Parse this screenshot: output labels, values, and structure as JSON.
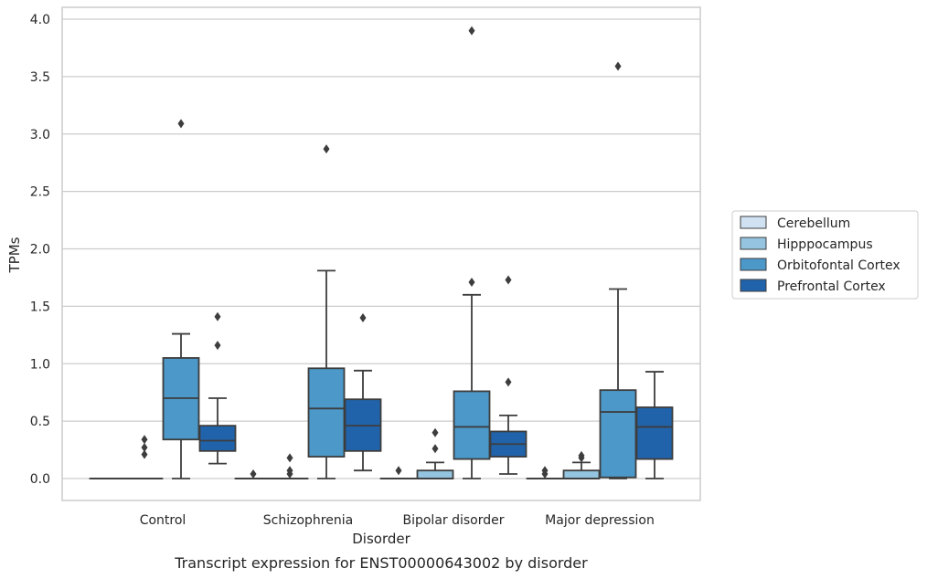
{
  "chart_data": {
    "type": "box",
    "title": "Transcript expression for ENST00000643002 by disorder",
    "xlabel": "Disorder",
    "ylabel": "TPMs",
    "ylim": [
      -0.18,
      4.1
    ],
    "yticks": [
      0.0,
      0.5,
      1.0,
      1.5,
      2.0,
      2.5,
      3.0,
      3.5,
      4.0
    ],
    "ytick_labels": [
      "0.0",
      "0.5",
      "1.0",
      "1.5",
      "2.0",
      "2.5",
      "3.0",
      "3.5",
      "4.0"
    ],
    "grid": "horizontal",
    "legend_position": "right",
    "categories": [
      "Control",
      "Schizophrenia",
      "Bipolar disorder",
      "Major depression"
    ],
    "series": [
      {
        "name": "Cerebellum",
        "color": "#d0e1f2",
        "boxes": [
          {
            "q1": 0,
            "median": 0,
            "q3": 0,
            "whisker_low": 0,
            "whisker_high": 0,
            "outliers": []
          },
          {
            "q1": 0,
            "median": 0,
            "q3": 0,
            "whisker_low": 0,
            "whisker_high": 0,
            "outliers": [
              0.04
            ]
          },
          {
            "q1": 0,
            "median": 0,
            "q3": 0,
            "whisker_low": 0,
            "whisker_high": 0,
            "outliers": [
              0.07
            ]
          },
          {
            "q1": 0,
            "median": 0,
            "q3": 0,
            "whisker_low": 0,
            "whisker_high": 0,
            "outliers": [
              0.04,
              0.07
            ]
          }
        ]
      },
      {
        "name": "Hipppocampus",
        "color": "#94c4df",
        "boxes": [
          {
            "q1": 0,
            "median": 0,
            "q3": 0,
            "whisker_low": 0,
            "whisker_high": 0,
            "outliers": [
              0.21,
              0.27,
              0.34
            ]
          },
          {
            "q1": 0,
            "median": 0,
            "q3": 0,
            "whisker_low": 0,
            "whisker_high": 0,
            "outliers": [
              0.04,
              0.07,
              0.18
            ]
          },
          {
            "q1": 0,
            "median": 0,
            "q3": 0.07,
            "whisker_low": 0,
            "whisker_high": 0.14,
            "outliers": [
              0.26,
              0.4
            ]
          },
          {
            "q1": 0,
            "median": 0,
            "q3": 0.07,
            "whisker_low": 0,
            "whisker_high": 0.14,
            "outliers": [
              0.18,
              0.2
            ]
          }
        ]
      },
      {
        "name": "Orbitofontal Cortex",
        "color": "#4b98c9",
        "boxes": [
          {
            "q1": 0.34,
            "median": 0.7,
            "q3": 1.05,
            "whisker_low": 0,
            "whisker_high": 1.26,
            "outliers": [
              3.09
            ]
          },
          {
            "q1": 0.19,
            "median": 0.61,
            "q3": 0.96,
            "whisker_low": 0,
            "whisker_high": 1.81,
            "outliers": [
              2.87
            ]
          },
          {
            "q1": 0.17,
            "median": 0.45,
            "q3": 0.76,
            "whisker_low": 0,
            "whisker_high": 1.6,
            "outliers": [
              1.71,
              3.9
            ]
          },
          {
            "q1": 0.01,
            "median": 0.58,
            "q3": 0.77,
            "whisker_low": 0,
            "whisker_high": 1.65,
            "outliers": [
              3.59
            ]
          }
        ]
      },
      {
        "name": "Prefrontal Cortex",
        "color": "#2163aa",
        "boxes": [
          {
            "q1": 0.24,
            "median": 0.33,
            "q3": 0.46,
            "whisker_low": 0.13,
            "whisker_high": 0.7,
            "outliers": [
              1.16,
              1.41
            ]
          },
          {
            "q1": 0.24,
            "median": 0.46,
            "q3": 0.69,
            "whisker_low": 0.07,
            "whisker_high": 0.94,
            "outliers": [
              1.4
            ]
          },
          {
            "q1": 0.19,
            "median": 0.3,
            "q3": 0.41,
            "whisker_low": 0.04,
            "whisker_high": 0.55,
            "outliers": [
              0.84,
              1.73
            ]
          },
          {
            "q1": 0.17,
            "median": 0.45,
            "q3": 0.62,
            "whisker_low": 0,
            "whisker_high": 0.93,
            "outliers": []
          }
        ]
      }
    ]
  }
}
